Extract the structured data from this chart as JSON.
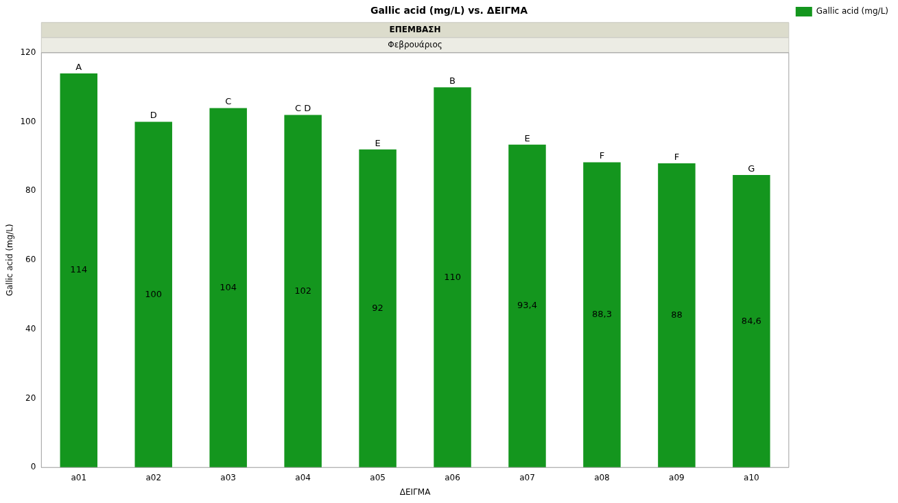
{
  "chart_data": {
    "type": "bar",
    "title": "Gallic acid (mg/L) vs. ΔΕΙΓΜΑ",
    "subtitle": "ΕΠΕΜΒΑΣΗ",
    "xlabel": "ΔΕΙΓΜΑ",
    "ylabel": "Gallic acid (mg/L)",
    "categories": [
      "a01",
      "a02",
      "a03",
      "a04",
      "a05",
      "a06",
      "a07",
      "a08",
      "a09",
      "a10"
    ],
    "series": [
      {
        "name": "Gallic acid (mg/L)",
        "color": "#14961e",
        "values": [
          114,
          100,
          104,
          102,
          92,
          110,
          93.4,
          88.3,
          88,
          84.6
        ],
        "value_labels": [
          "114",
          "100",
          "104",
          "102",
          "92",
          "110",
          "93,4",
          "88,3",
          "88",
          "84,6"
        ]
      }
    ],
    "ylim": [
      0,
      120
    ],
    "yticks": [
      0,
      20,
      40,
      60,
      80,
      100,
      120
    ],
    "legend": "top right",
    "annotations": [
      "Φεβρουάριος",
      {
        "text": "A",
        "x": "a01",
        "y": 114
      },
      {
        "text": "D",
        "x": "a02",
        "y": 100
      },
      {
        "text": "C",
        "x": "a03",
        "y": 104
      },
      {
        "text": "C D",
        "x": "a04",
        "y": 102
      },
      {
        "text": "E",
        "x": "a05",
        "y": 92
      },
      {
        "text": "B",
        "x": "a06",
        "y": 110
      },
      {
        "text": "E",
        "x": "a07",
        "y": 93.4
      },
      {
        "text": "F",
        "x": "a08",
        "y": 88.3
      },
      {
        "text": "F",
        "x": "a09",
        "y": 88
      },
      {
        "text": "G",
        "x": "a10",
        "y": 84.6
      }
    ]
  }
}
